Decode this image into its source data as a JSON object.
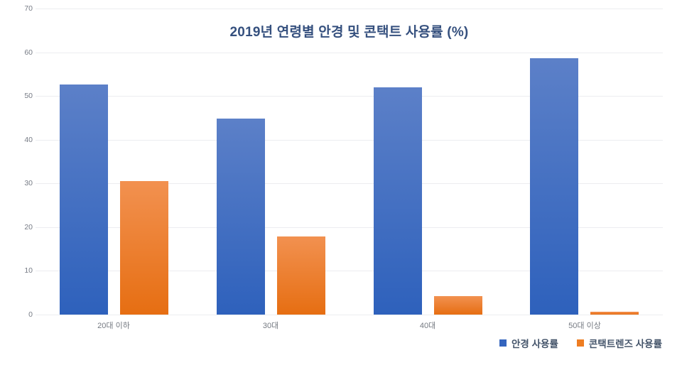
{
  "chart_data": {
    "type": "bar",
    "title": "2019년 연령별 안경 및 콘택트 사용률 (%)",
    "categories": [
      "20대 이하",
      "30대",
      "40대",
      "50대 이상"
    ],
    "series": [
      {
        "name": "안경 사용률",
        "values": [
          52.7,
          44.8,
          52.0,
          58.7
        ],
        "color_top": "#5C80C8",
        "color_bottom": "#2E61BC",
        "legend_color": "#3465BE"
      },
      {
        "name": "콘택트렌즈 사용률",
        "values": [
          30.6,
          17.8,
          4.3,
          0.6
        ],
        "color_top": "#F29150",
        "color_bottom": "#E66E12",
        "legend_color": "#EE7D22"
      }
    ],
    "xlabel": "",
    "ylabel": "",
    "ylim": [
      0,
      70
    ],
    "yticks": [
      0,
      10,
      20,
      30,
      40,
      50,
      60,
      70
    ],
    "grid": true,
    "legend_position": "bottom-right"
  },
  "colors": {
    "title_text": "#35507E",
    "legend_text": "#44546A",
    "tick_text": "#767B85",
    "gridline": "#ECEDF0",
    "background": "#FFFFFF"
  }
}
